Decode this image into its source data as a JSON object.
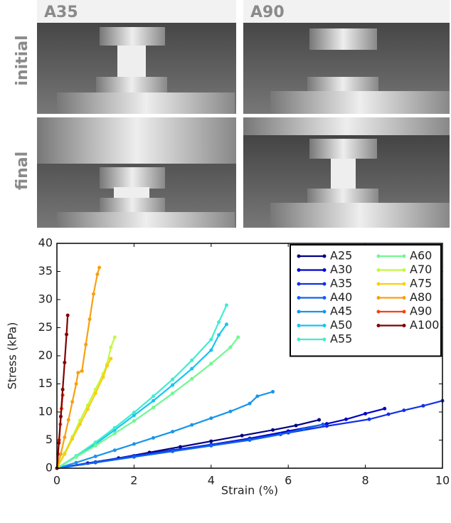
{
  "photo_labels": {
    "left": "A35",
    "right": "A90",
    "top_row": "initial",
    "bottom_row": "final"
  },
  "chart_data": {
    "type": "line",
    "x_label": "Strain (%)",
    "y_label": "Stress (kPa)",
    "xlim": [
      0,
      10
    ],
    "ylim": [
      0,
      40
    ],
    "xticks": [
      0,
      2,
      4,
      6,
      8,
      10
    ],
    "yticks": [
      0,
      5,
      10,
      15,
      20,
      25,
      30,
      35,
      40
    ],
    "legend": "upper right",
    "series": [
      {
        "name": "A25",
        "color": "#00007f",
        "x": [
          0,
          0.8,
          1.6,
          2.4,
          3.2,
          4,
          4.8,
          5.6,
          6.2,
          6.8
        ],
        "values": [
          0,
          0.9,
          1.8,
          2.8,
          3.8,
          4.8,
          5.8,
          6.8,
          7.6,
          8.6
        ]
      },
      {
        "name": "A30",
        "color": "#0000c8",
        "x": [
          0,
          1,
          2,
          3,
          4,
          5,
          6,
          7,
          7.5,
          8,
          8.5
        ],
        "values": [
          0,
          1,
          2.2,
          3.2,
          4.2,
          5.3,
          6.6,
          7.9,
          8.7,
          9.7,
          10.6
        ]
      },
      {
        "name": "A35",
        "color": "#1030e8",
        "x": [
          0,
          1,
          2,
          3,
          4,
          5,
          6,
          7,
          8.1,
          8.6,
          9,
          9.5,
          10
        ],
        "values": [
          0,
          1.1,
          2.2,
          3.2,
          4.2,
          5.2,
          6.3,
          7.5,
          8.7,
          9.6,
          10.3,
          11.1,
          12
        ]
      },
      {
        "name": "A40",
        "color": "#1064ec",
        "x": [
          0,
          1,
          2,
          3,
          4,
          5,
          5.8,
          6.4,
          6.9
        ],
        "values": [
          0,
          1,
          2,
          3,
          4,
          5,
          6,
          7,
          7.8
        ]
      },
      {
        "name": "A45",
        "color": "#1894ec",
        "x": [
          0,
          0.5,
          1,
          1.5,
          2,
          2.5,
          3,
          3.5,
          4,
          4.5,
          5,
          5.2,
          5.6
        ],
        "values": [
          0,
          1,
          2.1,
          3.2,
          4.3,
          5.4,
          6.5,
          7.7,
          8.9,
          10.1,
          11.5,
          12.8,
          13.6
        ]
      },
      {
        "name": "A50",
        "color": "#18c4f0",
        "x": [
          0,
          0.5,
          1,
          1.5,
          2,
          2.5,
          3,
          3.5,
          4,
          4.2,
          4.4
        ],
        "values": [
          0,
          2,
          4.3,
          6.8,
          9.4,
          12,
          14.8,
          17.7,
          21,
          23.7,
          25.6
        ]
      },
      {
        "name": "A55",
        "color": "#40ecd0",
        "x": [
          0,
          0.5,
          1,
          1.5,
          2,
          2.5,
          3,
          3.5,
          4,
          4.2,
          4.4
        ],
        "values": [
          0,
          2.2,
          4.6,
          7.2,
          9.9,
          12.8,
          15.8,
          19.2,
          22.9,
          26,
          29
        ]
      },
      {
        "name": "A60",
        "color": "#70f890",
        "x": [
          0,
          0.5,
          1,
          1.5,
          2,
          2.5,
          3,
          3.5,
          4,
          4.5,
          4.7
        ],
        "values": [
          0,
          2,
          4,
          6.2,
          8.4,
          10.8,
          13.3,
          15.9,
          18.6,
          21.5,
          23.3
        ]
      },
      {
        "name": "A70",
        "color": "#c4f840",
        "x": [
          0,
          0.2,
          0.4,
          0.6,
          0.8,
          1,
          1.2,
          1.3,
          1.4,
          1.5
        ],
        "values": [
          0,
          2.7,
          5.6,
          8.5,
          11.2,
          14,
          16.8,
          18.5,
          21.5,
          23.3
        ]
      },
      {
        "name": "A75",
        "color": "#f8d010",
        "x": [
          0,
          0.2,
          0.4,
          0.6,
          0.8,
          1,
          1.2,
          1.3,
          1.4
        ],
        "values": [
          0,
          2.5,
          5.2,
          7.8,
          10.5,
          13.3,
          16.2,
          18.2,
          19.5
        ]
      },
      {
        "name": "A80",
        "color": "#f8a010",
        "x": [
          0,
          0.1,
          0.2,
          0.3,
          0.4,
          0.5,
          0.55,
          0.65,
          0.75,
          0.85,
          0.95,
          1.05,
          1.1
        ],
        "values": [
          0,
          2.5,
          5.5,
          8.6,
          11.8,
          15,
          17,
          17.3,
          22,
          26.5,
          31,
          34.5,
          35.7
        ]
      },
      {
        "name": "A90",
        "color": "#f84010",
        "x": [
          0,
          0.03,
          0.06,
          0.09,
          0.12,
          0.15
        ],
        "values": [
          0,
          2.5,
          5,
          7.8,
          10.6,
          13
        ]
      },
      {
        "name": "A100",
        "color": "#800000",
        "x": [
          0,
          0.05,
          0.1,
          0.15,
          0.2,
          0.25,
          0.28
        ],
        "values": [
          0,
          4.5,
          9.2,
          14,
          18.8,
          23.8,
          27.2
        ]
      }
    ]
  }
}
